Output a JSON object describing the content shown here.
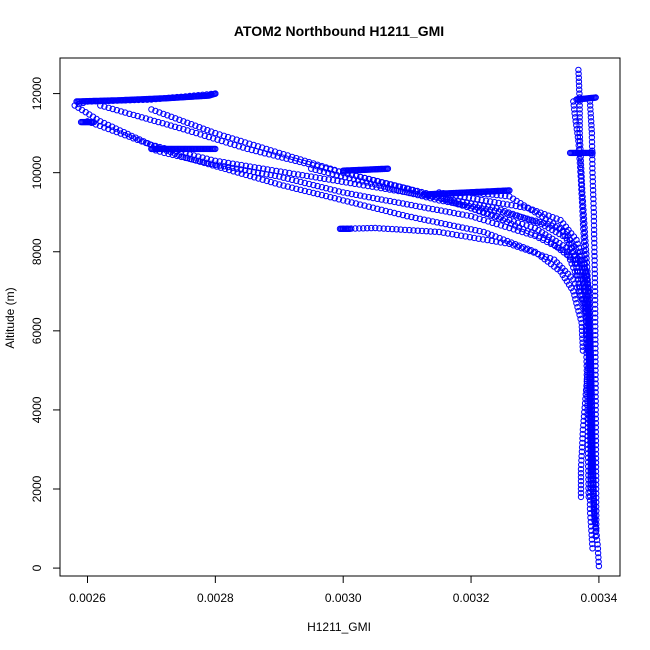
{
  "chart_data": {
    "type": "scatter",
    "title": "ATOM2 Northbound H1211_GMI",
    "xlabel": "H1211_GMI",
    "ylabel": "Altitude (m)",
    "xlim": [
      0.002557,
      0.003433
    ],
    "ylim": [
      -200,
      12900
    ],
    "x_ticks": [
      0.0026,
      0.0028,
      0.003,
      0.0032,
      0.0034
    ],
    "x_tick_labels": [
      "0.0026",
      "0.0028",
      "0.0030",
      "0.0032",
      "0.0034"
    ],
    "y_ticks": [
      0,
      2000,
      4000,
      6000,
      8000,
      10000,
      12000
    ],
    "y_tick_labels": [
      "0",
      "2000",
      "4000",
      "6000",
      "8000",
      "10000",
      "12000"
    ],
    "grid": false,
    "marker": "open-circle",
    "series": [
      {
        "color": "#0000ff",
        "profiles": [
          [
            [
              0.0034,
              50
            ],
            [
              0.003398,
              600
            ],
            [
              0.003392,
              1500
            ],
            [
              0.003388,
              3000
            ],
            [
              0.003386,
              4500
            ],
            [
              0.003385,
              6000
            ],
            [
              0.003383,
              6700
            ],
            [
              0.003378,
              7300
            ],
            [
              0.00337,
              7900
            ],
            [
              0.003355,
              8300
            ],
            [
              0.00331,
              8700
            ],
            [
              0.00324,
              9100
            ],
            [
              0.0031,
              9500
            ],
            [
              0.00295,
              9900
            ],
            [
              0.0028,
              10300
            ],
            [
              0.0027,
              10700
            ],
            [
              0.00262,
              11300
            ],
            [
              0.00258,
              11700
            ],
            [
              0.0026,
              11800
            ],
            [
              0.0027,
              11850
            ],
            [
              0.0028,
              12000
            ]
          ],
          [
            [
              0.003395,
              800
            ],
            [
              0.00339,
              2500
            ],
            [
              0.003389,
              4000
            ],
            [
              0.003387,
              5500
            ],
            [
              0.00338,
              6600
            ],
            [
              0.00336,
              7300
            ],
            [
              0.00333,
              7800
            ],
            [
              0.00326,
              8200
            ],
            [
              0.00315,
              8500
            ],
            [
              0.00305,
              8600
            ],
            [
              0.003,
              8580
            ]
          ],
          [
            [
              0.00339,
              500
            ],
            [
              0.003386,
              1500
            ],
            [
              0.003388,
              3000
            ],
            [
              0.003386,
              5000
            ],
            [
              0.003378,
              6700
            ],
            [
              0.003365,
              7400
            ],
            [
              0.00335,
              8000
            ],
            [
              0.0033,
              8400
            ],
            [
              0.0032,
              8900
            ],
            [
              0.0031,
              9200
            ],
            [
              0.003,
              9500
            ],
            [
              0.0029,
              9900
            ],
            [
              0.0028,
              10200
            ],
            [
              0.00272,
              10500
            ],
            [
              0.0027,
              10600
            ]
          ],
          [
            [
              0.003372,
              1800
            ],
            [
              0.003372,
              2500
            ],
            [
              0.003375,
              3500
            ],
            [
              0.00338,
              4500
            ],
            [
              0.003385,
              5500
            ],
            [
              0.003384,
              6500
            ],
            [
              0.003375,
              7200
            ],
            [
              0.00336,
              7800
            ],
            [
              0.00332,
              8300
            ],
            [
              0.00325,
              8800
            ],
            [
              0.00315,
              9400
            ],
            [
              0.003,
              10000
            ],
            [
              0.00285,
              10600
            ],
            [
              0.00275,
              11100
            ],
            [
              0.00262,
              11700
            ]
          ],
          [
            [
              0.003385,
              7000
            ],
            [
              0.00338,
              7500
            ],
            [
              0.00336,
              8000
            ],
            [
              0.0033,
              8600
            ],
            [
              0.0032,
              9100
            ],
            [
              0.0031,
              9600
            ],
            [
              0.003,
              10000
            ],
            [
              0.0029,
              10500
            ],
            [
              0.0028,
              11000
            ],
            [
              0.0027,
              11600
            ]
          ],
          [
            [
              0.003375,
              5500
            ],
            [
              0.003373,
              6200
            ],
            [
              0.00336,
              7000
            ],
            [
              0.00334,
              7500
            ],
            [
              0.0033,
              8000
            ],
            [
              0.00322,
              8500
            ],
            [
              0.0031,
              8900
            ],
            [
              0.003,
              9300
            ],
            [
              0.0029,
              9700
            ],
            [
              0.00275,
              10400
            ],
            [
              0.0026,
              11300
            ]
          ],
          [
            [
              0.003388,
              2000
            ],
            [
              0.003386,
              3500
            ],
            [
              0.003385,
              5000
            ],
            [
              0.003383,
              6500
            ],
            [
              0.003375,
              7300
            ],
            [
              0.00336,
              8000
            ],
            [
              0.00334,
              8600
            ],
            [
              0.0033,
              9000
            ],
            [
              0.00326,
              9400
            ],
            [
              0.0032,
              9500
            ]
          ],
          [
            [
              0.003393,
              1200
            ],
            [
              0.00339,
              3000
            ],
            [
              0.003388,
              5000
            ],
            [
              0.003385,
              6800
            ],
            [
              0.003378,
              7600
            ],
            [
              0.003365,
              8300
            ],
            [
              0.00334,
              8800
            ],
            [
              0.00329,
              9100
            ],
            [
              0.00315,
              9500
            ]
          ],
          [
            [
              0.003378,
              6500
            ],
            [
              0.00337,
              7000
            ],
            [
              0.003365,
              7600
            ],
            [
              0.00336,
              8000
            ],
            [
              0.00335,
              8500
            ],
            [
              0.00332,
              8700
            ],
            [
              0.00325,
              9000
            ],
            [
              0.00315,
              9300
            ],
            [
              0.00305,
              9700
            ],
            [
              0.00295,
              10100
            ]
          ],
          [
            [
              0.003396,
              1000
            ],
            [
              0.003395,
              4000
            ],
            [
              0.003394,
              7000
            ],
            [
              0.003392,
              9000
            ],
            [
              0.00339,
              10000
            ],
            [
              0.003389,
              11000
            ],
            [
              0.003386,
              11800
            ]
          ],
          [
            [
              0.00339,
              2500
            ],
            [
              0.003387,
              4500
            ],
            [
              0.003385,
              6000
            ],
            [
              0.003382,
              7500
            ],
            [
              0.003378,
              8500
            ],
            [
              0.003374,
              9500
            ],
            [
              0.003372,
              10200
            ],
            [
              0.00337,
              11000
            ],
            [
              0.00337,
              11800
            ],
            [
              0.003368,
              12600
            ]
          ],
          [
            [
              0.003384,
              1800
            ],
            [
              0.003382,
              4000
            ],
            [
              0.00338,
              6000
            ],
            [
              0.003378,
              7800
            ],
            [
              0.003375,
              8800
            ],
            [
              0.003372,
              9800
            ],
            [
              0.003368,
              10800
            ],
            [
              0.003362,
              11500
            ],
            [
              0.00336,
              11800
            ]
          ]
        ],
        "flat_segments": [
          [
            [
              0.002583,
              11800
            ],
            [
              0.00265,
              11830
            ],
            [
              0.00272,
              11880
            ],
            [
              0.00279,
              11950
            ],
            [
              0.0028,
              12000
            ]
          ],
          [
            [
              0.00259,
              11280
            ],
            [
              0.00261,
              11280
            ]
          ],
          [
            [
              0.0027,
              10600
            ],
            [
              0.0028,
              10600
            ]
          ],
          [
            [
              0.003,
              10050
            ],
            [
              0.00307,
              10100
            ]
          ],
          [
            [
              0.00313,
              9450
            ],
            [
              0.00326,
              9550
            ]
          ],
          [
            [
              0.002995,
              8580
            ],
            [
              0.00301,
              8580
            ]
          ],
          [
            [
              0.003355,
              10500
            ],
            [
              0.00339,
              10500
            ]
          ],
          [
            [
              0.003365,
              11850
            ],
            [
              0.003395,
              11900
            ]
          ]
        ]
      }
    ]
  }
}
